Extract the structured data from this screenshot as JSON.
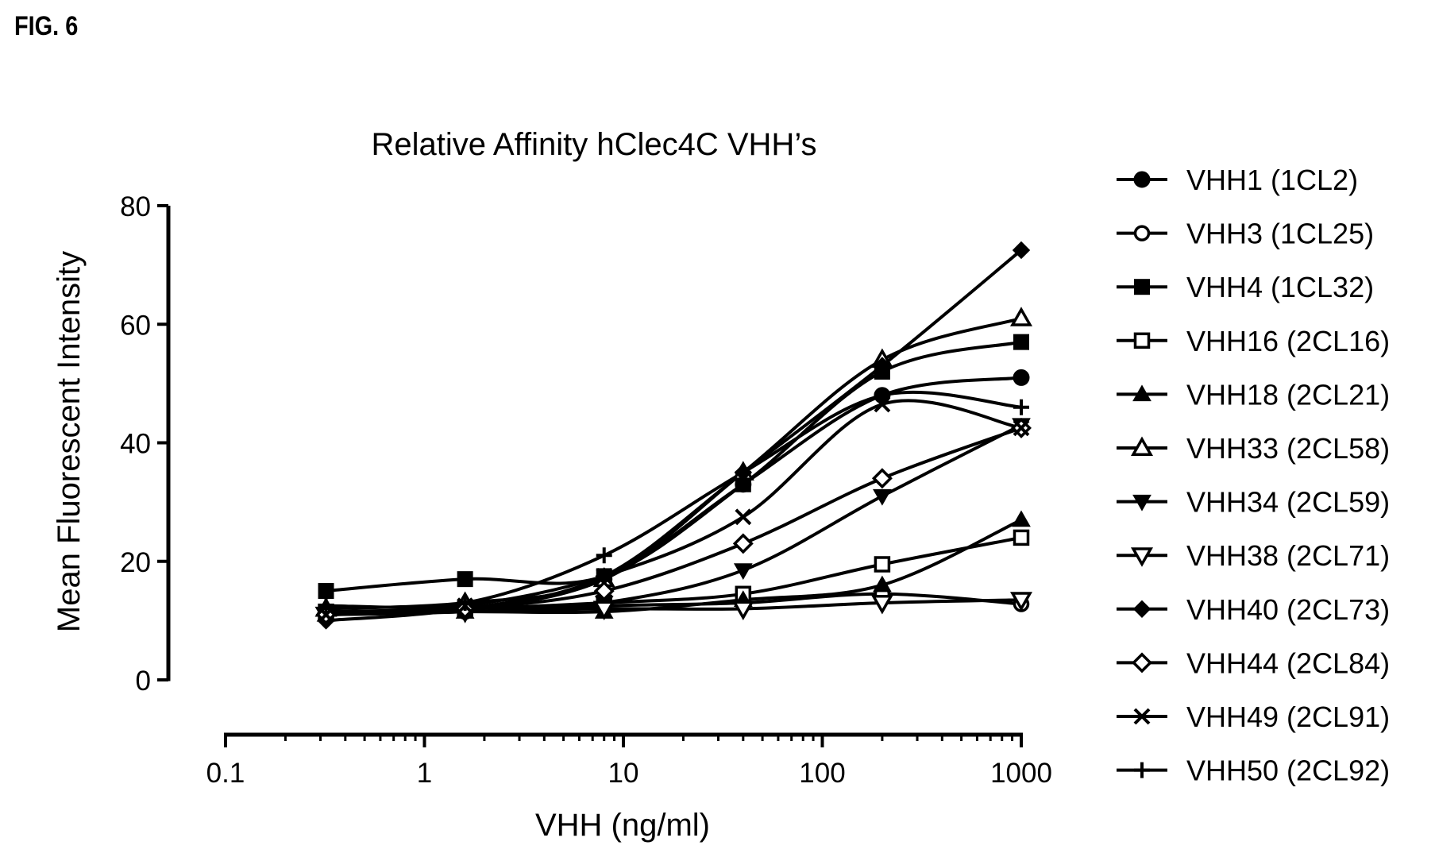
{
  "figure_label": "FIG. 6",
  "chart_data": {
    "type": "line",
    "title": "Relative Affinity hClec4C VHH’s",
    "xlabel": "VHH (ng/ml)",
    "ylabel": "Mean Fluorescent Intensity",
    "xscale": "log",
    "xlim": [
      0.1,
      1000
    ],
    "ylim": [
      0,
      80
    ],
    "xticks": [
      "0.1",
      "1",
      "10",
      "100",
      "1000"
    ],
    "yticks": [
      "0",
      "20",
      "40",
      "60",
      "80"
    ],
    "grid": false,
    "legend_position": "right",
    "x": [
      0.32,
      1.6,
      8,
      40,
      200,
      1000
    ],
    "series": [
      {
        "name": "VHH1 (1CL2)",
        "marker": "circle-filled",
        "values": [
          11.5,
          12,
          17,
          33,
          48,
          51
        ]
      },
      {
        "name": "VHH3 (1CL25)",
        "marker": "circle-open",
        "values": [
          11,
          11.5,
          12.5,
          13,
          14.5,
          12.8
        ]
      },
      {
        "name": "VHH4 (1CL32)",
        "marker": "square-filled",
        "values": [
          15,
          17,
          17.5,
          33,
          52,
          57
        ]
      },
      {
        "name": "VHH16 (2CL16)",
        "marker": "square-open",
        "values": [
          11.5,
          12,
          13,
          14.5,
          19.5,
          24
        ]
      },
      {
        "name": "VHH18 (2CL21)",
        "marker": "triangle-up-filled",
        "values": [
          11,
          11.5,
          11.5,
          13.5,
          16,
          27
        ]
      },
      {
        "name": "VHH33 (2CL58)",
        "marker": "triangle-up-open",
        "values": [
          12,
          13,
          17,
          35,
          54,
          61
        ]
      },
      {
        "name": "VHH34 (2CL59)",
        "marker": "triangle-down-filled",
        "values": [
          11,
          11.5,
          13,
          18.5,
          31,
          43
        ]
      },
      {
        "name": "VHH38 (2CL71)",
        "marker": "triangle-down-open",
        "values": [
          11,
          11.5,
          12,
          12,
          13,
          13.5
        ]
      },
      {
        "name": "VHH40 (2CL73)",
        "marker": "diamond-filled",
        "values": [
          10,
          12,
          17.5,
          35,
          53,
          72.5
        ]
      },
      {
        "name": "VHH44 (2CL84)",
        "marker": "diamond-open",
        "values": [
          11,
          12,
          15,
          23,
          34,
          42.5
        ]
      },
      {
        "name": "VHH49 (2CL91)",
        "marker": "x",
        "values": [
          11,
          12.5,
          17.5,
          27.5,
          46.5,
          42.5
        ]
      },
      {
        "name": "VHH50 (2CL92)",
        "marker": "plus",
        "values": [
          12.5,
          13,
          21,
          35,
          48,
          46
        ]
      }
    ]
  }
}
